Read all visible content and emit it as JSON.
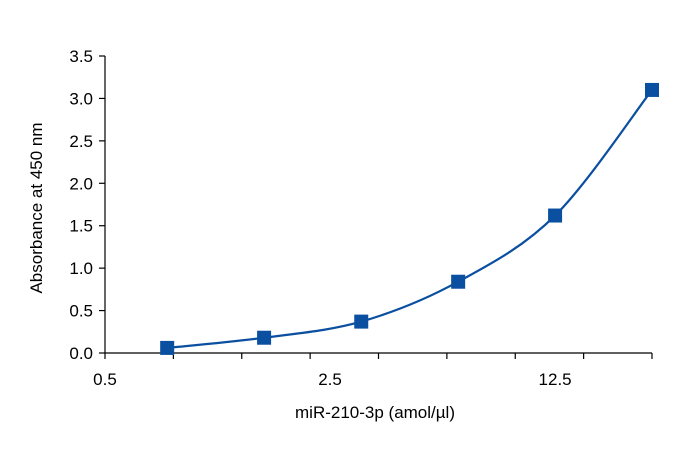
{
  "chart_data": {
    "type": "scatter",
    "title": "",
    "xlabel": "miR-210-3p (amol/µl)",
    "ylabel": "Absorbance at 450 nm",
    "x_scale": "log",
    "xlim": [
      0.5,
      25
    ],
    "ylim": [
      0,
      3.5
    ],
    "x_ticks": [
      0.5,
      2.5,
      12.5
    ],
    "x_tick_labels": [
      "0.5",
      "2.5",
      "12.5"
    ],
    "y_ticks": [
      0,
      0.5,
      1,
      1.5,
      2,
      2.5,
      3,
      3.5
    ],
    "y_tick_labels": [
      "0.0",
      "0.5",
      "1.0",
      "1.5",
      "2.0",
      "2.5",
      "3.0",
      "3.5"
    ],
    "grid": false,
    "legend": "none",
    "series": [
      {
        "x": [
          0.78,
          1.56,
          3.125,
          6.25,
          12.5,
          25
        ],
        "y": [
          0.06,
          0.18,
          0.37,
          0.84,
          1.62,
          3.1
        ],
        "marker": "square",
        "fit_curve": true
      }
    ],
    "colors": {
      "series": "#0a4fa0",
      "axis": "#000000"
    }
  }
}
